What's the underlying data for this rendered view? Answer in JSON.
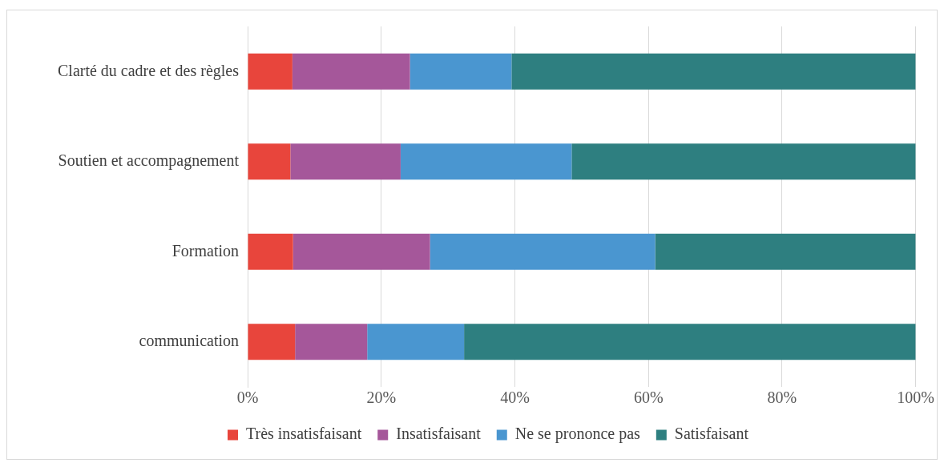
{
  "chart_data": {
    "type": "bar",
    "orientation": "horizontal",
    "stacked": true,
    "categories": [
      "Clarté du cadre et des règles",
      "Soutien et accompagnement",
      "Formation",
      "communication"
    ],
    "series": [
      {
        "name": "Très insatisfaisant",
        "color": "#e8453c",
        "values": [
          6.7,
          6.4,
          6.8,
          7.1
        ]
      },
      {
        "name": "Insatisfaisant",
        "color": "#a5579a",
        "values": [
          17.6,
          16.5,
          20.5,
          10.8
        ]
      },
      {
        "name": "Ne se prononce pas",
        "color": "#4a96d0",
        "values": [
          15.2,
          25.6,
          33.7,
          14.5
        ]
      },
      {
        "name": "Satisfaisant",
        "color": "#2e7f80",
        "values": [
          60.5,
          51.5,
          39.0,
          67.6
        ]
      }
    ],
    "xlim": [
      0,
      100
    ],
    "xticks": [
      {
        "value": 0,
        "label": "0%"
      },
      {
        "value": 20,
        "label": "20%"
      },
      {
        "value": 40,
        "label": "40%"
      },
      {
        "value": 60,
        "label": "60%"
      },
      {
        "value": 80,
        "label": "80%"
      },
      {
        "value": 100,
        "label": "100%"
      }
    ],
    "grid": "x",
    "legend": "bottom"
  }
}
